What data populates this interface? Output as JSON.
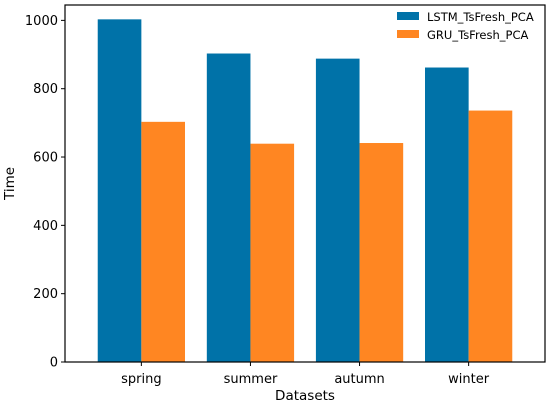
{
  "chart_data": {
    "type": "bar",
    "title": "",
    "xlabel": "Datasets",
    "ylabel": "Time",
    "categories": [
      "spring",
      "summer",
      "autumn",
      "winter"
    ],
    "series": [
      {
        "name": "LSTM_TsFresh_PCA",
        "color": "#0072a8",
        "values": [
          1003,
          903,
          888,
          862
        ]
      },
      {
        "name": "GRU_TsFresh_PCA",
        "color": "#ff8622",
        "values": [
          703,
          639,
          641,
          736
        ]
      }
    ],
    "ylim": [
      0,
      1045
    ],
    "yticks": [
      0,
      200,
      400,
      600,
      800,
      1000
    ],
    "grid": false,
    "legend_position": "top-right"
  }
}
